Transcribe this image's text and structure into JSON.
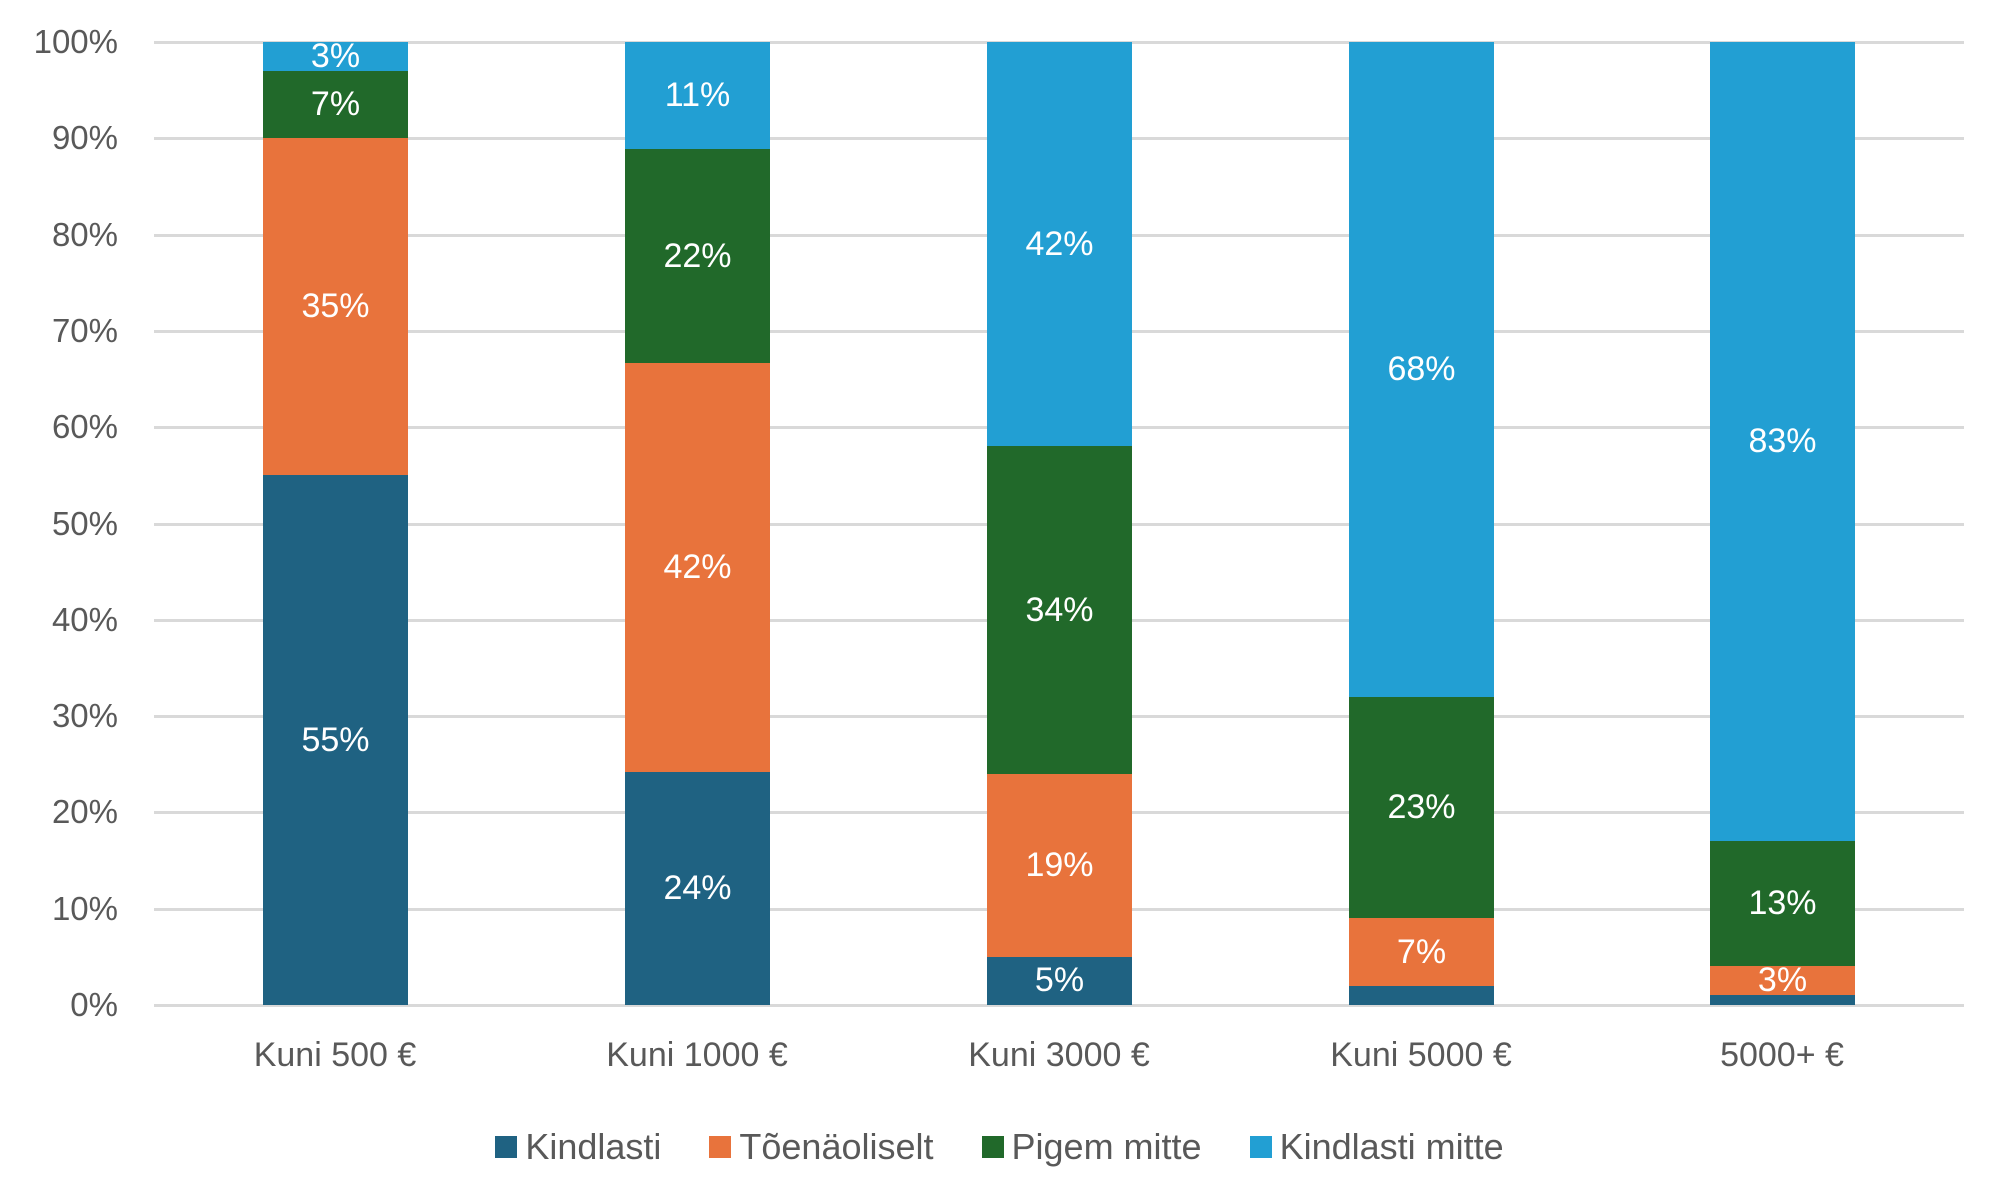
{
  "chart_data": {
    "type": "bar",
    "stacked": true,
    "percent_stacked": true,
    "title": "",
    "xlabel": "",
    "ylabel": "",
    "ylim": [
      0,
      100
    ],
    "y_ticks": [
      "0%",
      "10%",
      "20%",
      "30%",
      "40%",
      "50%",
      "60%",
      "70%",
      "80%",
      "90%",
      "100%"
    ],
    "grid": true,
    "legend_position": "bottom",
    "categories": [
      "Kuni 500 €",
      "Kuni 1000 €",
      "Kuni 3000 €",
      "Kuni 5000 €",
      "5000+ €"
    ],
    "series": [
      {
        "name": "Kindlasti",
        "color": "#1f6282",
        "values": [
          55,
          24,
          5,
          2,
          1
        ],
        "labels": [
          "55%",
          "24%",
          "5%",
          "",
          ""
        ]
      },
      {
        "name": "Tõenäoliselt",
        "color": "#e8733c",
        "values": [
          35,
          42,
          19,
          7,
          3
        ],
        "labels": [
          "35%",
          "42%",
          "19%",
          "7%",
          "3%"
        ]
      },
      {
        "name": "Pigem mitte",
        "color": "#21692a",
        "values": [
          7,
          22,
          34,
          23,
          13
        ],
        "labels": [
          "7%",
          "22%",
          "34%",
          "23%",
          "13%"
        ]
      },
      {
        "name": "Kindlasti mitte",
        "color": "#229fd3",
        "values": [
          3,
          11,
          42,
          68,
          83
        ],
        "labels": [
          "3%",
          "11%",
          "42%",
          "68%",
          "83%"
        ]
      }
    ]
  }
}
